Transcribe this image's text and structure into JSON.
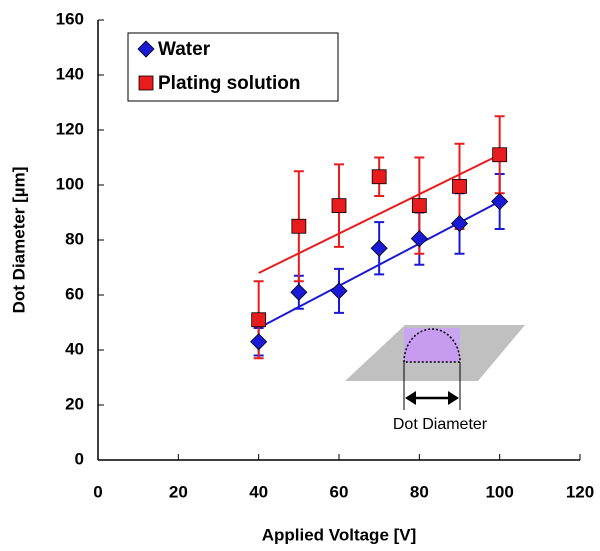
{
  "chart_data": {
    "type": "scatter",
    "xlabel": "Applied Voltage [V]",
    "ylabel": "Dot Diameter [µm]",
    "xlim": [
      0,
      120
    ],
    "xticks": [
      0,
      20,
      40,
      60,
      80,
      100,
      120
    ],
    "ylim": [
      0,
      160
    ],
    "yticks": [
      0,
      20,
      40,
      60,
      80,
      100,
      120,
      140,
      160
    ],
    "legend": "top-left",
    "annotation": "Dot Diameter",
    "series": [
      {
        "name": "Water",
        "color": "#1a1ad6",
        "marker": "diamond",
        "x": [
          40,
          50,
          60,
          70,
          80,
          90,
          100
        ],
        "values": [
          43,
          61,
          61.5,
          77,
          80.5,
          86,
          94
        ],
        "errors": [
          5,
          6,
          8,
          9.5,
          9.5,
          11,
          10
        ],
        "trend": {
          "x": [
            40,
            100
          ],
          "values": [
            48,
            94
          ]
        }
      },
      {
        "name": "Plating solution",
        "color": "#e81c1c",
        "marker": "square",
        "x": [
          40,
          50,
          60,
          70,
          80,
          90,
          100
        ],
        "values": [
          51,
          85,
          92.5,
          103,
          92.5,
          99.5,
          111
        ],
        "errors": [
          14,
          20,
          15,
          7,
          17.5,
          15.5,
          14
        ],
        "trend": {
          "x": [
            40,
            100
          ],
          "values": [
            68,
            111
          ]
        }
      }
    ]
  }
}
